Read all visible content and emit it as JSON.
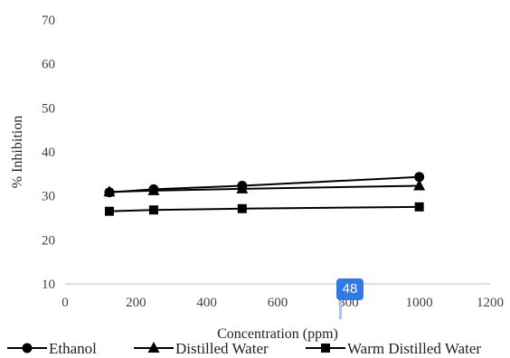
{
  "chart_data": {
    "type": "line",
    "xlabel": "Concentration (ppm)",
    "ylabel": "% Inhibition",
    "xlim": [
      0,
      1200
    ],
    "ylim": [
      10,
      70
    ],
    "xticks": [
      0,
      200,
      400,
      600,
      800,
      1000,
      1200
    ],
    "yticks": [
      10,
      20,
      30,
      40,
      50,
      60,
      70
    ],
    "grid": false,
    "legend_position": "bottom",
    "series": [
      {
        "name": "Ethanol",
        "marker": "circle",
        "color": "#000000",
        "x": [
          125,
          250,
          500,
          1000
        ],
        "y": [
          30.8,
          31.5,
          32.3,
          34.3
        ]
      },
      {
        "name": "Distilled Water",
        "marker": "triangle",
        "color": "#000000",
        "x": [
          125,
          250,
          500,
          1000
        ],
        "y": [
          30.9,
          31.2,
          31.6,
          32.3
        ]
      },
      {
        "name": "Warm Distilled Water",
        "marker": "square",
        "color": "#000000",
        "x": [
          125,
          250,
          500,
          1000
        ],
        "y": [
          26.5,
          26.8,
          27.1,
          27.5
        ]
      }
    ]
  },
  "overlay": {
    "badge_label": "48"
  }
}
